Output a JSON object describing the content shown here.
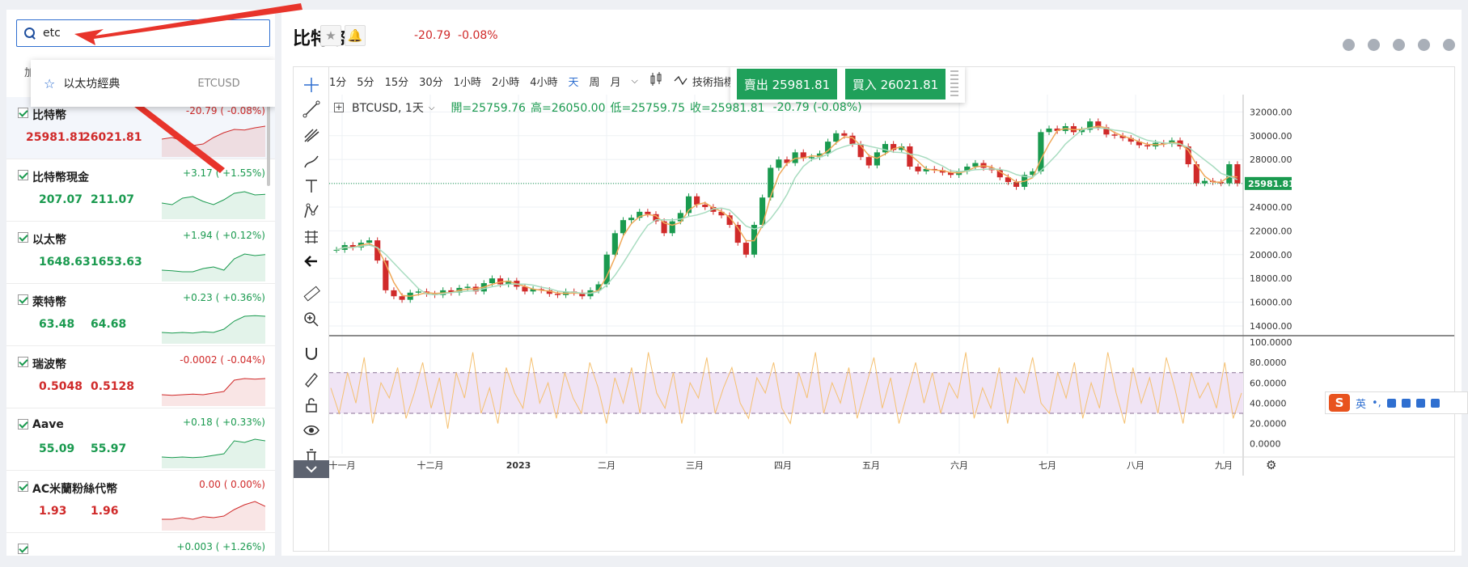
{
  "search": {
    "value": "etc",
    "tab_hint": "加"
  },
  "dropdown": {
    "name": "以太坊經典",
    "code": "ETCUSD"
  },
  "watchlist": [
    {
      "name": "比特幣",
      "bid": "25981.81",
      "ask": "26021.81",
      "change": "-20.79 ( -0.08%)",
      "dir": "down",
      "trend": [
        0.5,
        0.55,
        0.45,
        0.3,
        0.35,
        0.55,
        0.7,
        0.8,
        0.78,
        0.85,
        0.9
      ]
    },
    {
      "name": "比特幣現金",
      "bid": "207.07",
      "ask": "211.07",
      "change": "+3.17 ( +1.55%)",
      "dir": "up",
      "trend": [
        0.45,
        0.4,
        0.6,
        0.65,
        0.5,
        0.4,
        0.55,
        0.75,
        0.8,
        0.7,
        0.72
      ]
    },
    {
      "name": "以太幣",
      "bid": "1648.63",
      "ask": "1653.63",
      "change": "+1.94 ( +0.12%)",
      "dir": "up",
      "trend": [
        0.3,
        0.28,
        0.25,
        0.25,
        0.35,
        0.4,
        0.3,
        0.65,
        0.8,
        0.75,
        0.78
      ]
    },
    {
      "name": "萊特幣",
      "bid": "63.48",
      "ask": "64.68",
      "change": "+0.23 ( +0.36%)",
      "dir": "up",
      "trend": [
        0.3,
        0.28,
        0.3,
        0.28,
        0.32,
        0.3,
        0.4,
        0.65,
        0.8,
        0.82,
        0.8
      ]
    },
    {
      "name": "瑞波幣",
      "bid": "0.5048",
      "ask": "0.5128",
      "change": "-0.0002 ( -0.04%)",
      "dir": "down",
      "trend": [
        0.3,
        0.28,
        0.3,
        0.32,
        0.3,
        0.35,
        0.4,
        0.75,
        0.8,
        0.78,
        0.8
      ]
    },
    {
      "name": "Aave",
      "bid": "55.09",
      "ask": "55.97",
      "change": "+0.18 ( +0.33%)",
      "dir": "up",
      "trend": [
        0.3,
        0.28,
        0.3,
        0.28,
        0.3,
        0.35,
        0.4,
        0.8,
        0.75,
        0.85,
        0.8
      ]
    },
    {
      "name": "AC米蘭粉絲代幣",
      "bid": "1.93",
      "ask": "1.96",
      "change": "0.00 ( 0.00%)",
      "dir": "down",
      "trend": [
        0.3,
        0.3,
        0.35,
        0.3,
        0.38,
        0.35,
        0.4,
        0.6,
        0.75,
        0.85,
        0.7
      ]
    },
    {
      "name": "",
      "bid": "",
      "ask": "",
      "change": "+0.003 ( +1.26%)",
      "dir": "up",
      "trend": [
        0.5,
        0.5
      ]
    }
  ],
  "header": {
    "title": "比特幣",
    "price_change": "-20.79",
    "pct_change": "-0.08%"
  },
  "timeframes": [
    {
      "label": "1分",
      "active": false
    },
    {
      "label": "5分",
      "active": false
    },
    {
      "label": "15分",
      "active": false
    },
    {
      "label": "30分",
      "active": false
    },
    {
      "label": "1小時",
      "active": false
    },
    {
      "label": "2小時",
      "active": false
    },
    {
      "label": "4小時",
      "active": false
    },
    {
      "label": "天",
      "active": true
    },
    {
      "label": "周",
      "active": false
    },
    {
      "label": "月",
      "active": false
    }
  ],
  "indicators_label": "技術指標",
  "trade": {
    "sell": "賣出 25981.81",
    "buy": "買入 26021.81"
  },
  "ohlc": {
    "symbol": "BTCUSD, 1天",
    "open": "開=25759.76",
    "high": "高=26050.00",
    "low": "低=25759.75",
    "close": "收=25981.81",
    "change": "-20.79 (-0.08%)"
  },
  "ime": {
    "lang": "英"
  },
  "chart_data": [
    {
      "type": "line",
      "y_ticks": [
        "32000.00",
        "30000.00",
        "28000.00",
        "26000.00",
        "24000.00",
        "22000.00",
        "20000.00",
        "18000.00",
        "16000.00",
        "14000.00"
      ],
      "x_ticks": [
        "十一月",
        "十二月",
        "2023",
        "二月",
        "三月",
        "四月",
        "五月",
        "六月",
        "七月",
        "八月",
        "九月"
      ],
      "ylim": [
        14000,
        32500
      ],
      "last_price_label": "25981.81",
      "series": [
        {
          "values": [
            20400,
            20800,
            20600,
            21000,
            21200,
            19500,
            17000,
            16500,
            16200,
            16800,
            16900,
            16700,
            16600,
            17000,
            16800,
            17200,
            17300,
            16900,
            17600,
            18000,
            17500,
            17800,
            17300,
            16900,
            17100,
            17000,
            16700,
            16600,
            16900,
            16800,
            16500,
            17000,
            17500,
            20000,
            21800,
            22900,
            23100,
            23600,
            23400,
            22800,
            21800,
            22800,
            23500,
            24900,
            24200,
            24000,
            23600,
            23300,
            22500,
            21000,
            20000,
            22500,
            24800,
            27300,
            28000,
            27700,
            28600,
            28100,
            28200,
            28500,
            29500,
            30200,
            30000,
            29300,
            28200,
            27500,
            28600,
            29300,
            28800,
            29100,
            27400,
            27000,
            27200,
            27100,
            26900,
            26700,
            27000,
            27400,
            27700,
            27300,
            27100,
            26500,
            26100,
            25700,
            26700,
            27000,
            30300,
            30600,
            30400,
            30800,
            30300,
            30500,
            31200,
            30700,
            30100,
            30000,
            29800,
            29500,
            29200,
            29100,
            29400,
            29300,
            29600,
            29100,
            27600,
            26000,
            26200,
            26100,
            26000,
            27600,
            25981
          ]
        }
      ]
    },
    {
      "type": "line",
      "y_ticks": [
        "100.0000",
        "80.0000",
        "60.0000",
        "40.0000",
        "20.0000",
        "0.0000"
      ],
      "ylim": [
        -5,
        100
      ],
      "band": [
        30,
        70
      ],
      "series": [
        {
          "values": [
            55,
            30,
            70,
            40,
            85,
            20,
            60,
            45,
            75,
            25,
            50,
            80,
            35,
            65,
            15,
            70,
            45,
            90,
            30,
            55,
            20,
            75,
            50,
            35,
            85,
            40,
            60,
            25,
            70,
            45,
            30,
            80,
            55,
            20,
            65,
            40,
            75,
            30,
            90,
            50,
            35,
            70,
            20,
            60,
            45,
            85,
            30,
            55,
            75,
            40,
            25,
            65,
            50,
            80,
            35,
            20,
            70,
            45,
            90,
            30,
            60,
            40,
            75,
            25,
            55,
            85,
            35,
            65,
            20,
            50,
            80,
            40,
            70,
            30,
            60,
            45,
            90,
            25,
            55,
            35,
            75,
            20,
            65,
            50,
            85,
            40,
            30,
            70,
            45,
            80,
            25,
            60,
            35,
            90,
            50,
            20,
            75,
            40,
            65,
            30,
            85,
            55,
            20,
            70,
            45,
            60,
            35,
            80,
            25,
            50
          ]
        }
      ]
    }
  ]
}
